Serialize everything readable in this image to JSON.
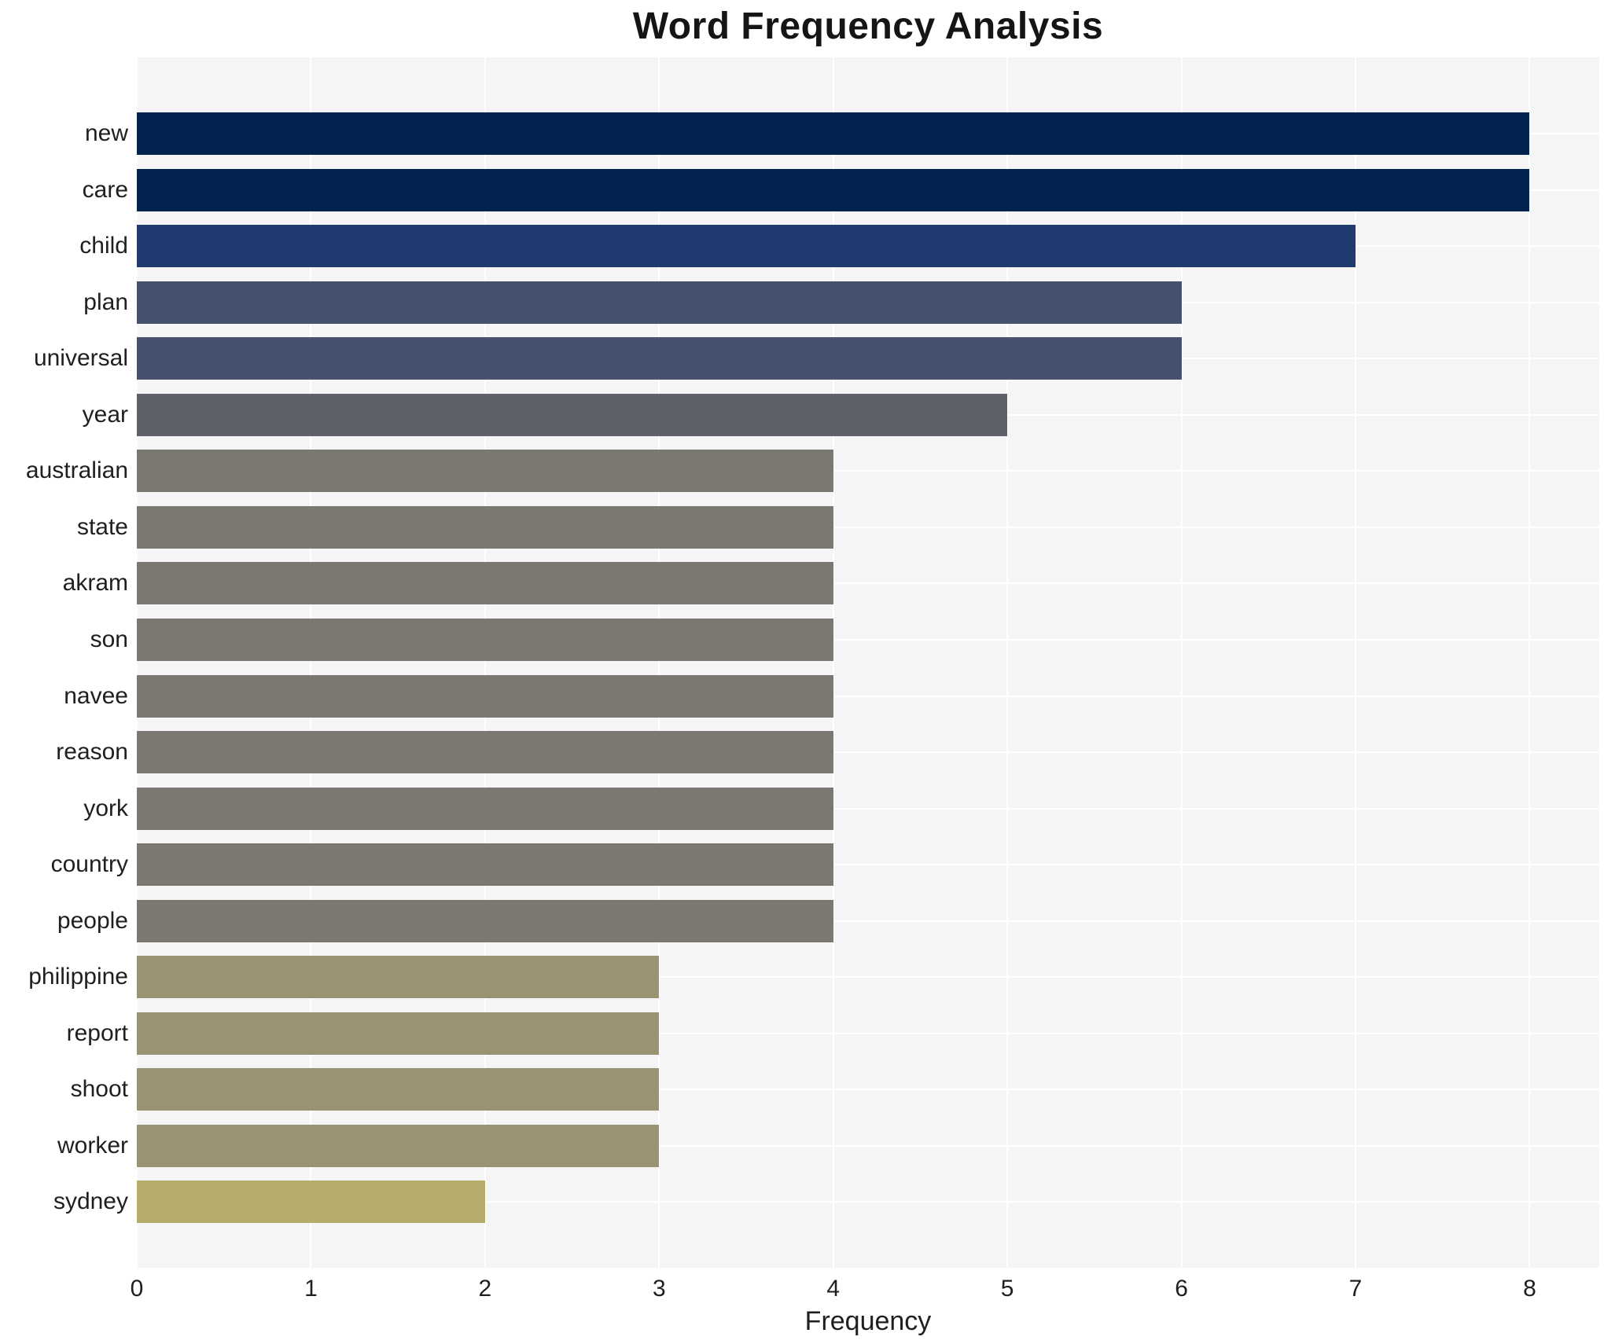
{
  "page": {
    "title": "Word Frequency Analysis"
  },
  "chart_data": {
    "type": "bar",
    "orientation": "horizontal",
    "title": "Word Frequency Analysis",
    "xlabel": "Frequency",
    "ylabel": "",
    "categories": [
      "new",
      "care",
      "child",
      "plan",
      "universal",
      "year",
      "australian",
      "state",
      "akram",
      "son",
      "navee",
      "reason",
      "york",
      "country",
      "people",
      "philippine",
      "report",
      "shoot",
      "worker",
      "sydney"
    ],
    "values": [
      8,
      8,
      7,
      6,
      6,
      5,
      4,
      4,
      4,
      4,
      4,
      4,
      4,
      4,
      4,
      3,
      3,
      3,
      3,
      2
    ],
    "bar_colors": [
      "#02234d",
      "#02234d",
      "#1e3a6e",
      "#46506f",
      "#46506f",
      "#5e6169",
      "#7a7871",
      "#7a7871",
      "#7a7871",
      "#7a7871",
      "#7a7871",
      "#7a7871",
      "#7a7871",
      "#7a7871",
      "#7a7871",
      "#9a9372",
      "#9a9372",
      "#9a9372",
      "#9a9372",
      "#b5ab6a"
    ],
    "x_ticks": [
      "0",
      "1",
      "2",
      "3",
      "4",
      "5",
      "6",
      "7",
      "8"
    ],
    "xlim": [
      0,
      8.4
    ],
    "grid": "on",
    "legend_position": "none",
    "colors": {
      "panel_bg": "#f5f5f6",
      "page_bg": "#ffffff",
      "gridline": "#ffffff",
      "text": "#1f1f1f",
      "title_text": "#151515"
    }
  }
}
